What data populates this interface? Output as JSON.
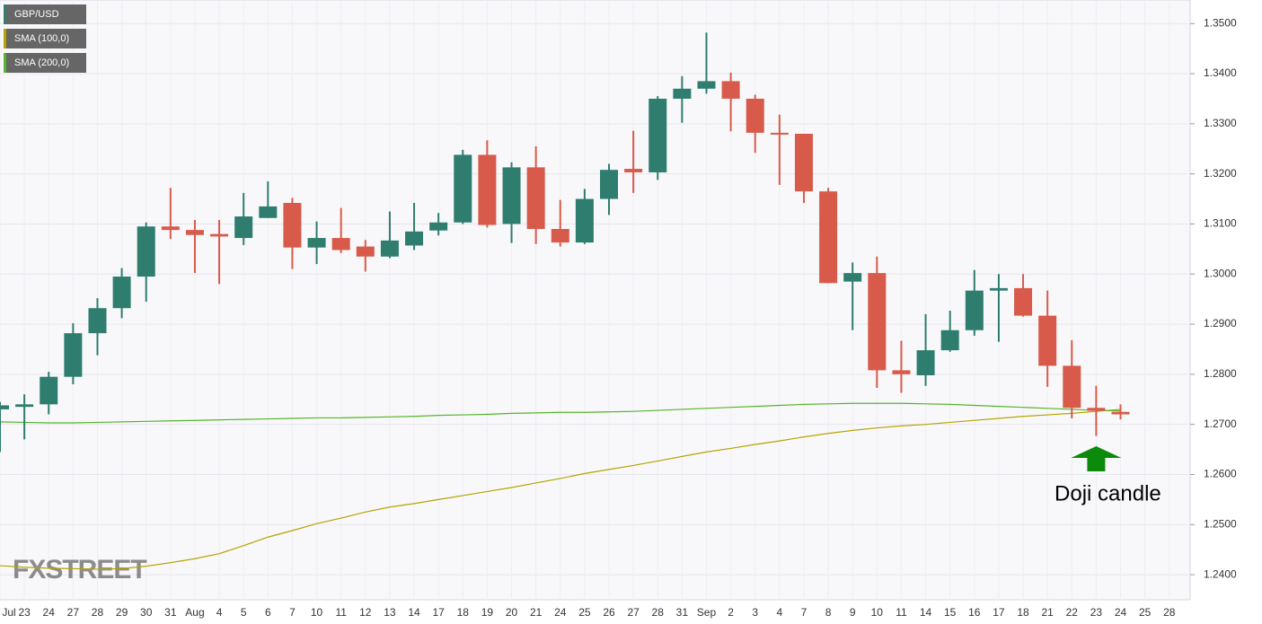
{
  "chart_data": {
    "type": "candlestick",
    "legend": [
      "GBP/USD",
      "SMA (100,0)",
      "SMA (200,0)"
    ],
    "legend_colors": [
      "#2e7d6e",
      "#b5a400",
      "#55b52a"
    ],
    "watermark": "FXSTREET",
    "annotation": {
      "text": "Doji candle",
      "index": 45,
      "color": "#0b8a0b"
    },
    "up_color": "#2e7d6e",
    "down_color": "#d85a4a",
    "categories": [
      "Jul",
      "23",
      "24",
      "27",
      "28",
      "29",
      "30",
      "31",
      "Aug",
      "4",
      "5",
      "6",
      "7",
      "10",
      "11",
      "12",
      "13",
      "14",
      "17",
      "18",
      "19",
      "20",
      "21",
      "24",
      "25",
      "26",
      "27",
      "28",
      "31",
      "Sep",
      "2",
      "3",
      "4",
      "7",
      "8",
      "9",
      "10",
      "11",
      "14",
      "15",
      "16",
      "17",
      "18",
      "21",
      "22",
      "23",
      "24",
      "25",
      "28"
    ],
    "open": [
      1.273,
      1.2735,
      1.274,
      1.2795,
      1.2882,
      1.2932,
      1.2995,
      1.3095,
      1.3088,
      1.308,
      1.3072,
      1.3112,
      1.3142,
      1.3053,
      1.3072,
      1.3055,
      1.3035,
      1.3057,
      1.3087,
      1.3103,
      1.3238,
      1.31,
      1.3213,
      1.309,
      1.3063,
      1.315,
      1.321,
      1.3203,
      1.335,
      1.337,
      1.3385,
      1.335,
      1.3282,
      1.328,
      1.3165,
      1.2985,
      1.3002,
      1.2808,
      1.2798,
      1.2848,
      1.2888,
      1.2967,
      1.2972,
      1.2917,
      1.2817,
      1.2733,
      1.2725,
      null,
      null
    ],
    "high": [
      1.2745,
      1.276,
      1.2805,
      1.2902,
      1.2952,
      1.3012,
      1.3103,
      1.3172,
      1.3108,
      1.3108,
      1.3162,
      1.3185,
      1.3152,
      1.3105,
      1.3132,
      1.3068,
      1.3125,
      1.3142,
      1.3122,
      1.3248,
      1.3267,
      1.3223,
      1.3255,
      1.3148,
      1.317,
      1.322,
      1.3286,
      1.3355,
      1.3395,
      1.3482,
      1.3402,
      1.3358,
      1.3318,
      1.328,
      1.3172,
      1.3023,
      1.3035,
      1.2867,
      1.292,
      1.2927,
      1.3008,
      1.3,
      1.3,
      1.2967,
      1.2868,
      1.2777,
      1.274,
      null,
      null
    ],
    "low": [
      1.2645,
      1.267,
      1.272,
      1.278,
      1.2838,
      1.2912,
      1.2945,
      1.307,
      1.3002,
      1.298,
      1.3058,
      1.3112,
      1.301,
      1.302,
      1.3042,
      1.3005,
      1.3032,
      1.3048,
      1.3077,
      1.31,
      1.3093,
      1.3062,
      1.306,
      1.3055,
      1.306,
      1.3118,
      1.3162,
      1.3188,
      1.3302,
      1.336,
      1.3285,
      1.3242,
      1.3178,
      1.3142,
      1.2982,
      1.2888,
      1.2773,
      1.2763,
      1.2777,
      1.2845,
      1.2877,
      1.2865,
      1.2915,
      1.2775,
      1.2712,
      1.2677,
      1.271,
      null,
      null
    ],
    "close": [
      1.2738,
      1.274,
      1.2795,
      1.2882,
      1.2932,
      1.2995,
      1.3095,
      1.3088,
      1.3078,
      1.3075,
      1.3115,
      1.3135,
      1.3053,
      1.3072,
      1.3048,
      1.3035,
      1.3067,
      1.3085,
      1.3103,
      1.3238,
      1.3098,
      1.3213,
      1.309,
      1.3063,
      1.315,
      1.3208,
      1.3203,
      1.335,
      1.337,
      1.3385,
      1.335,
      1.3282,
      1.328,
      1.3165,
      1.2982,
      1.3002,
      1.2808,
      1.28,
      1.2848,
      1.2888,
      1.2967,
      1.2972,
      1.2917,
      1.2817,
      1.2733,
      1.2727,
      1.272,
      null,
      null
    ],
    "series": [
      {
        "name": "SMA (100,0)",
        "color": "#b5a400",
        "values": [
          1.2418,
          1.2415,
          1.2413,
          1.2412,
          1.2411,
          1.2412,
          1.2417,
          1.2424,
          1.2432,
          1.2442,
          1.2458,
          1.2475,
          1.2488,
          1.2502,
          1.2513,
          1.2525,
          1.2535,
          1.2542,
          1.255,
          1.2558,
          1.2566,
          1.2574,
          1.2583,
          1.2592,
          1.2602,
          1.261,
          1.2618,
          1.2627,
          1.2636,
          1.2645,
          1.2652,
          1.266,
          1.2667,
          1.2675,
          1.2682,
          1.2688,
          1.2693,
          1.2697,
          1.27,
          1.2704,
          1.2708,
          1.2712,
          1.2716,
          1.2719,
          1.2722,
          1.2726,
          1.273,
          null,
          null
        ]
      },
      {
        "name": "SMA (200,0)",
        "color": "#55b52a",
        "values": [
          1.2705,
          1.2704,
          1.2703,
          1.2703,
          1.2704,
          1.2705,
          1.2706,
          1.2707,
          1.2708,
          1.2709,
          1.271,
          1.2711,
          1.2712,
          1.2713,
          1.2713,
          1.2714,
          1.2715,
          1.2716,
          1.2718,
          1.2719,
          1.272,
          1.2722,
          1.2723,
          1.2724,
          1.2724,
          1.2725,
          1.2726,
          1.2728,
          1.273,
          1.2732,
          1.2734,
          1.2736,
          1.2738,
          1.274,
          1.2741,
          1.2742,
          1.2742,
          1.2742,
          1.2741,
          1.274,
          1.2738,
          1.2736,
          1.2734,
          1.2732,
          1.273,
          1.2728,
          1.2727,
          null,
          null
        ]
      }
    ],
    "ylim": [
      1.235,
      1.3547
    ],
    "yticks": [
      {
        "value": 1.24,
        "label": "1.2400"
      },
      {
        "value": 1.25,
        "label": "1.2500"
      },
      {
        "value": 1.26,
        "label": "1.2600"
      },
      {
        "value": 1.27,
        "label": "1.2700"
      },
      {
        "value": 1.28,
        "label": "1.2800"
      },
      {
        "value": 1.29,
        "label": "1.2900"
      },
      {
        "value": 1.3,
        "label": "1.3000"
      },
      {
        "value": 1.31,
        "label": "1.3100"
      },
      {
        "value": 1.32,
        "label": "1.3200"
      },
      {
        "value": 1.33,
        "label": "1.3300"
      },
      {
        "value": 1.34,
        "label": "1.3400"
      },
      {
        "value": 1.35,
        "label": "1.3500"
      }
    ],
    "grid": true
  }
}
